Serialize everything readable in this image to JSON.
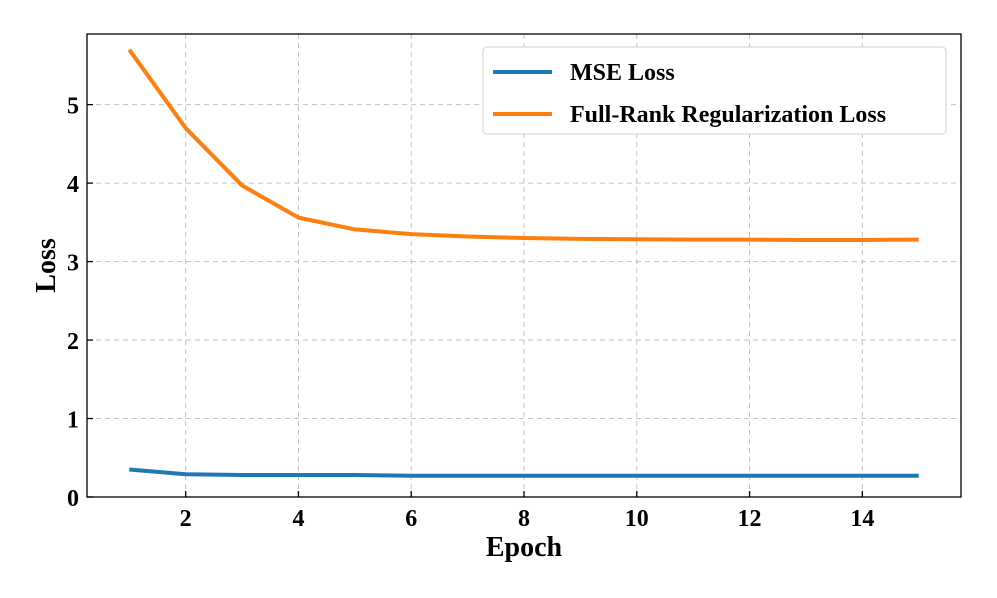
{
  "chart_data": {
    "type": "line",
    "xlabel": "Epoch",
    "ylabel": "Loss",
    "xlim": [
      0.25,
      15.75
    ],
    "ylim": [
      0,
      5.9
    ],
    "xticks": [
      2,
      4,
      6,
      8,
      10,
      12,
      14
    ],
    "xtick_labels": [
      "2",
      "4",
      "6",
      "8",
      "10",
      "12",
      "14"
    ],
    "yticks": [
      0,
      1,
      2,
      3,
      4,
      5
    ],
    "ytick_labels": [
      "0",
      "1",
      "2",
      "3",
      "4",
      "5"
    ],
    "grid": true,
    "legend_position": "top-right",
    "x": [
      1,
      2,
      3,
      4,
      5,
      6,
      7,
      8,
      9,
      10,
      11,
      12,
      13,
      14,
      15
    ],
    "series": [
      {
        "name": "MSE Loss",
        "color": "#1f77b4",
        "values": [
          0.35,
          0.29,
          0.28,
          0.28,
          0.28,
          0.27,
          0.27,
          0.27,
          0.27,
          0.27,
          0.27,
          0.27,
          0.27,
          0.27,
          0.27
        ]
      },
      {
        "name": "Full-Rank Regularization Loss",
        "color": "#ff7f0e",
        "values": [
          5.7,
          4.7,
          3.97,
          3.56,
          3.41,
          3.35,
          3.32,
          3.3,
          3.29,
          3.285,
          3.28,
          3.28,
          3.275,
          3.275,
          3.28
        ]
      }
    ]
  }
}
